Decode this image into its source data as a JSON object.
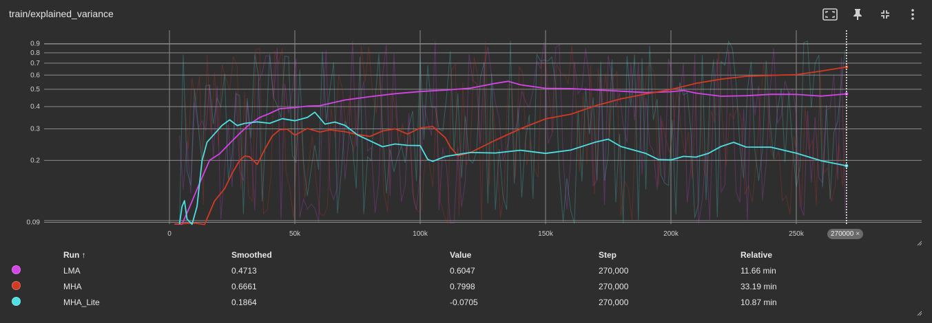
{
  "header": {
    "title": "train/explained_variance"
  },
  "toolbar": {
    "icons": [
      "fullscreen-icon",
      "pin-icon",
      "collapse-icon",
      "more-vert-icon"
    ]
  },
  "hover": {
    "step_label": "270000",
    "close_glyph": "×"
  },
  "colors": {
    "background": "#2e2e2e",
    "grid": "#8c8c8c",
    "LMA": "#d545e6",
    "MHA": "#d43a22",
    "MHA_Lite": "#4ee0e4"
  },
  "chart_data": {
    "type": "line",
    "title": "train/explained_variance",
    "yscale": "log",
    "xlim": [
      -50000,
      300000
    ],
    "ylim": [
      0.088,
      1.07
    ],
    "x_ticks": [
      0,
      50000,
      100000,
      150000,
      200000,
      250000
    ],
    "x_tick_labels": [
      "0",
      "50k",
      "100k",
      "150k",
      "200k",
      "250k"
    ],
    "y_ticks": [
      0.09,
      0.2,
      0.3,
      0.4,
      0.5,
      0.6,
      0.7,
      0.8,
      0.9
    ],
    "y_tick_labels": [
      "0.09",
      "0.2",
      "0.3",
      "0.4",
      "0.5",
      "0.6",
      "0.7",
      "0.8",
      "0.9"
    ],
    "hover_step": 270000,
    "series": [
      {
        "name": "LMA",
        "x": [
          2000,
          5000,
          8000,
          12000,
          16000,
          20000,
          24000,
          28000,
          32000,
          36000,
          40000,
          44000,
          50000,
          55000,
          60000,
          70000,
          80000,
          90000,
          100000,
          110000,
          120000,
          130000,
          135000,
          140000,
          150000,
          160000,
          170000,
          180000,
          190000,
          200000,
          205000,
          210000,
          220000,
          230000,
          240000,
          250000,
          260000,
          270000
        ],
        "y": [
          0.088,
          0.088,
          0.11,
          0.15,
          0.2,
          0.22,
          0.25,
          0.28,
          0.32,
          0.35,
          0.37,
          0.39,
          0.4,
          0.4,
          0.41,
          0.43,
          0.45,
          0.47,
          0.49,
          0.5,
          0.51,
          0.54,
          0.55,
          0.53,
          0.51,
          0.5,
          0.5,
          0.49,
          0.48,
          0.49,
          0.49,
          0.47,
          0.46,
          0.46,
          0.47,
          0.47,
          0.46,
          0.4713
        ]
      },
      {
        "name": "MHA",
        "x": [
          2000,
          10000,
          14000,
          18000,
          22000,
          25000,
          28000,
          30000,
          32000,
          35000,
          38000,
          41000,
          44000,
          47000,
          50000,
          55000,
          60000,
          64000,
          70000,
          75000,
          80000,
          85000,
          90000,
          95000,
          100000,
          105000,
          110000,
          112000,
          115000,
          120000,
          130000,
          140000,
          150000,
          160000,
          170000,
          180000,
          190000,
          200000,
          210000,
          220000,
          230000,
          240000,
          250000,
          260000,
          270000
        ],
        "y": [
          0.088,
          0.088,
          0.088,
          0.12,
          0.14,
          0.17,
          0.2,
          0.21,
          0.21,
          0.19,
          0.23,
          0.27,
          0.3,
          0.3,
          0.28,
          0.3,
          0.29,
          0.3,
          0.29,
          0.28,
          0.27,
          0.29,
          0.3,
          0.28,
          0.3,
          0.31,
          0.27,
          0.24,
          0.21,
          0.22,
          0.26,
          0.3,
          0.34,
          0.36,
          0.4,
          0.44,
          0.47,
          0.5,
          0.54,
          0.57,
          0.59,
          0.6,
          0.61,
          0.64,
          0.6661
        ]
      },
      {
        "name": "MHA_Lite",
        "x": [
          4000,
          5000,
          6000,
          7000,
          9000,
          11000,
          13000,
          15000,
          18000,
          21000,
          24000,
          27000,
          30000,
          35000,
          40000,
          45000,
          50000,
          55000,
          58000,
          62000,
          66000,
          70000,
          75000,
          80000,
          85000,
          90000,
          95000,
          100000,
          103000,
          105000,
          110000,
          120000,
          130000,
          140000,
          150000,
          160000,
          170000,
          175000,
          180000,
          190000,
          195000,
          200000,
          205000,
          210000,
          215000,
          220000,
          225000,
          230000,
          240000,
          250000,
          260000,
          270000
        ],
        "y": [
          0.088,
          0.11,
          0.12,
          0.095,
          0.088,
          0.11,
          0.2,
          0.25,
          0.28,
          0.31,
          0.34,
          0.31,
          0.32,
          0.33,
          0.32,
          0.34,
          0.33,
          0.35,
          0.37,
          0.32,
          0.33,
          0.31,
          0.28,
          0.26,
          0.24,
          0.25,
          0.24,
          0.24,
          0.2,
          0.2,
          0.21,
          0.22,
          0.22,
          0.23,
          0.22,
          0.23,
          0.25,
          0.26,
          0.24,
          0.22,
          0.2,
          0.2,
          0.21,
          0.21,
          0.22,
          0.24,
          0.25,
          0.24,
          0.24,
          0.22,
          0.2,
          0.1864
        ]
      }
    ]
  },
  "legend": {
    "columns": [
      "Run ↑",
      "Smoothed",
      "Value",
      "Step",
      "Relative"
    ],
    "rows": [
      {
        "run": "LMA",
        "smoothed": "0.4713",
        "value": "0.6047",
        "step": "270,000",
        "relative": "11.66 min"
      },
      {
        "run": "MHA",
        "smoothed": "0.6661",
        "value": "0.7998",
        "step": "270,000",
        "relative": "33.19 min"
      },
      {
        "run": "MHA_Lite",
        "smoothed": "0.1864",
        "value": "-0.0705",
        "step": "270,000",
        "relative": "10.87 min"
      }
    ]
  }
}
